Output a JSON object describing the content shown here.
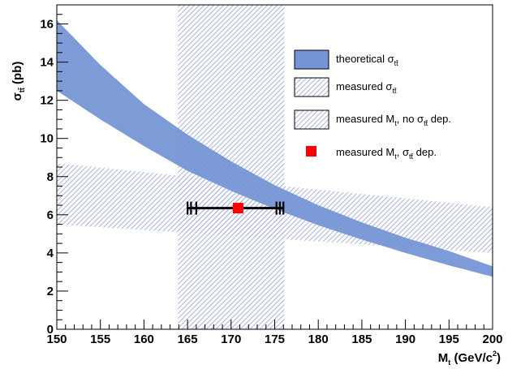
{
  "chart_data": {
    "type": "area",
    "title": "",
    "xlabel": {
      "main": "M",
      "sub": "t",
      "rest": " (GeV/c",
      "sup": "2",
      "end": ")"
    },
    "ylabel": {
      "main": "σ",
      "sub": "tt̄",
      "rest": " (pb)"
    },
    "xlim": [
      150,
      200
    ],
    "ylim": [
      0,
      17
    ],
    "x_ticks": [
      "150",
      "155",
      "160",
      "165",
      "170",
      "175",
      "180",
      "185",
      "190",
      "195",
      "200"
    ],
    "y_ticks": [
      "0",
      "2",
      "4",
      "6",
      "8",
      "10",
      "12",
      "14",
      "16"
    ],
    "grid": false,
    "legend_position": "top-right",
    "colors": {
      "theory_band": "#7294d4",
      "theory_band_edge": "#5b7fc6",
      "hatch": "#9aa6dc",
      "measured_marker": "#ff0000",
      "error_bar": "#000000"
    },
    "series": [
      {
        "legend": {
          "main": "theoretical σ",
          "sub": "tt̄",
          "rest": ""
        },
        "kind": "band",
        "x": [
          150,
          155,
          160,
          165,
          170,
          175,
          180,
          185,
          190,
          195,
          200
        ],
        "upper": [
          16.2,
          13.85,
          11.8,
          10.2,
          8.8,
          7.55,
          6.5,
          5.6,
          4.8,
          4.1,
          3.3
        ],
        "lower": [
          12.5,
          11.0,
          9.6,
          8.3,
          7.25,
          6.3,
          5.45,
          4.7,
          4.0,
          3.35,
          2.75
        ]
      },
      {
        "legend": {
          "main": "measured σ",
          "sub": "tt̄",
          "rest": ""
        },
        "kind": "horizontal_hatched_band",
        "x_left": [
          150,
          200
        ],
        "y_left": [
          5.5,
          8.7
        ],
        "x_right": [
          200,
          150
        ],
        "y_right": [
          4.0,
          6.3
        ]
      },
      {
        "legend": {
          "main": "measured M",
          "sub": "t",
          "rest": ", no σ",
          "sub2": "tt̄",
          "rest2": " dep."
        },
        "kind": "vertical_hatched_band",
        "x_range": [
          163.9,
          176.1
        ],
        "y_range": [
          0,
          17
        ]
      },
      {
        "legend": {
          "main": "measured M",
          "sub": "t",
          "rest": ", σ",
          "sub2": "tt̄",
          "rest2": " dep."
        },
        "kind": "point_with_errors",
        "x": 170.8,
        "y": 6.35,
        "x_err_inner": [
          166.0,
          175.2
        ],
        "x_err_mid": [
          165.4,
          175.6
        ],
        "x_err_outer": [
          165.0,
          176.0
        ]
      }
    ]
  }
}
